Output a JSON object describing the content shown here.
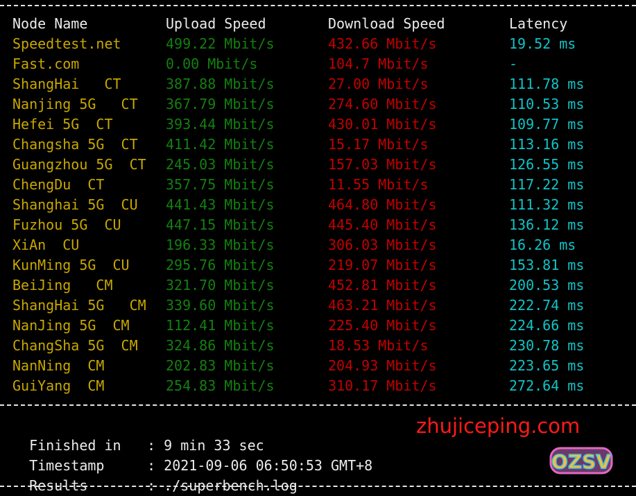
{
  "table": {
    "headers": [
      "Node Name",
      "Upload Speed",
      "Download Speed",
      "Latency"
    ],
    "rows": [
      [
        "Speedtest.net",
        "499.22 Mbit/s",
        "432.66 Mbit/s",
        "19.52 ms"
      ],
      [
        "Fast.com",
        "0.00 Mbit/s",
        "104.7 Mbit/s",
        "-"
      ],
      [
        "ShangHai   CT",
        "387.88 Mbit/s",
        "27.00 Mbit/s",
        "111.78 ms"
      ],
      [
        "Nanjing 5G   CT",
        "367.79 Mbit/s",
        "274.60 Mbit/s",
        "110.53 ms"
      ],
      [
        "Hefei 5G  CT",
        "393.44 Mbit/s",
        "430.01 Mbit/s",
        "109.77 ms"
      ],
      [
        "Changsha 5G  CT",
        "411.42 Mbit/s",
        "15.17 Mbit/s",
        "113.16 ms"
      ],
      [
        "Guangzhou 5G  CT",
        "245.03 Mbit/s",
        "157.03 Mbit/s",
        "126.55 ms"
      ],
      [
        "ChengDu  CT",
        "357.75 Mbit/s",
        "11.55 Mbit/s",
        "117.22 ms"
      ],
      [
        "Shanghai 5G  CU",
        "441.43 Mbit/s",
        "464.80 Mbit/s",
        "111.32 ms"
      ],
      [
        "Fuzhou 5G  CU",
        "447.15 Mbit/s",
        "445.40 Mbit/s",
        "136.12 ms"
      ],
      [
        "XiAn  CU",
        "196.33 Mbit/s",
        "306.03 Mbit/s",
        "16.26 ms"
      ],
      [
        "KunMing 5G  CU",
        "295.76 Mbit/s",
        "219.07 Mbit/s",
        "153.81 ms"
      ],
      [
        "BeiJing   CM",
        "321.70 Mbit/s",
        "452.81 Mbit/s",
        "200.53 ms"
      ],
      [
        "ShangHai 5G   CM",
        "339.60 Mbit/s",
        "463.21 Mbit/s",
        "222.74 ms"
      ],
      [
        "NanJing 5G  CM",
        "112.41 Mbit/s",
        "225.40 Mbit/s",
        "224.66 ms"
      ],
      [
        "ChangSha 5G  CM",
        "324.86 Mbit/s",
        "18.53 Mbit/s",
        "230.78 ms"
      ],
      [
        "NanNing  CM",
        "202.83 Mbit/s",
        "204.93 Mbit/s",
        "223.65 ms"
      ],
      [
        "GuiYang  CM",
        "254.83 Mbit/s",
        "310.17 Mbit/s",
        "272.64 ms"
      ]
    ]
  },
  "footer": {
    "finished_label": "Finished in",
    "finished_value": ": 9 min 33 sec",
    "timestamp_label": "Timestamp",
    "timestamp_value": ": 2021-09-06 06:50:53 GMT+8",
    "results_label": "Results",
    "results_value": ": ./superbench.log"
  },
  "watermark": {
    "text": "zhujiceping.com",
    "logo_text": "OZSV"
  },
  "colors": {
    "node": "#c8a800",
    "upload": "#13800f",
    "download": "#c40000",
    "latency": "#10c4c8",
    "background": "#000000"
  }
}
